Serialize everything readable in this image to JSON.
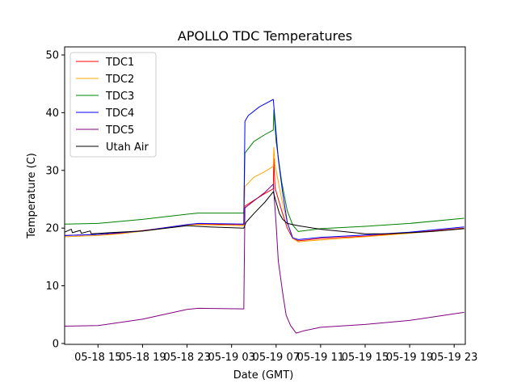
{
  "chart_data": {
    "type": "line",
    "title": "APOLLO TDC Temperatures",
    "xlabel": "Date (GMT)",
    "ylabel": "Temperature (C)",
    "x_units": "hours since 05-18 00:00",
    "xlim": [
      12,
      48
    ],
    "ylim": [
      -0.15,
      51.4
    ],
    "yticks": [
      0,
      10,
      20,
      30,
      40,
      50
    ],
    "xticks": [
      {
        "x": 15,
        "label": "05-18 15"
      },
      {
        "x": 19,
        "label": "05-18 19"
      },
      {
        "x": 23,
        "label": "05-18 23"
      },
      {
        "x": 27,
        "label": "05-19 03"
      },
      {
        "x": 31,
        "label": "05-19 07"
      },
      {
        "x": 35,
        "label": "05-19 11"
      },
      {
        "x": 39,
        "label": "05-19 15"
      },
      {
        "x": 43,
        "label": "05-19 19"
      },
      {
        "x": 47,
        "label": "05-19 23"
      }
    ],
    "grid": false,
    "legend_position": "top-left",
    "series": [
      {
        "name": "TDC1",
        "color": "#ff0000",
        "points": [
          [
            12,
            18.7
          ],
          [
            15,
            18.9
          ],
          [
            17,
            19.1
          ],
          [
            20,
            19.8
          ],
          [
            23,
            20.6
          ],
          [
            24,
            20.7
          ],
          [
            28.1,
            20.6
          ],
          [
            28.2,
            23.8
          ],
          [
            29,
            24.8
          ],
          [
            30,
            26
          ],
          [
            30.75,
            26.8
          ],
          [
            30.8,
            32
          ],
          [
            30.9,
            27
          ],
          [
            31.5,
            23
          ],
          [
            32,
            20
          ],
          [
            32.5,
            18.2
          ],
          [
            33,
            17.8
          ],
          [
            35,
            18.2
          ],
          [
            39,
            18.6
          ],
          [
            43,
            19.2
          ],
          [
            47.9,
            20
          ]
        ]
      },
      {
        "name": "TDC2",
        "color": "#ffa500",
        "points": [
          [
            12,
            18.5
          ],
          [
            15,
            18.7
          ],
          [
            17,
            19
          ],
          [
            20,
            19.7
          ],
          [
            23,
            20.5
          ],
          [
            24,
            20.6
          ],
          [
            28.1,
            20.4
          ],
          [
            28.2,
            27.2
          ],
          [
            29,
            28.8
          ],
          [
            30,
            29.8
          ],
          [
            30.75,
            30.7
          ],
          [
            30.8,
            34
          ],
          [
            30.9,
            31
          ],
          [
            31.5,
            25
          ],
          [
            32,
            21
          ],
          [
            32.5,
            18.2
          ],
          [
            33,
            17.6
          ],
          [
            34,
            17.8
          ],
          [
            39,
            18.5
          ],
          [
            43,
            19.1
          ],
          [
            47.9,
            19.9
          ]
        ]
      },
      {
        "name": "TDC3",
        "color": "#008000",
        "points": [
          [
            12,
            20.7
          ],
          [
            15,
            20.8
          ],
          [
            19,
            21.5
          ],
          [
            23,
            22.4
          ],
          [
            24,
            22.6
          ],
          [
            28.1,
            22.6
          ],
          [
            28.2,
            33
          ],
          [
            29,
            35
          ],
          [
            30,
            36.2
          ],
          [
            30.75,
            37
          ],
          [
            30.8,
            40.5
          ],
          [
            31,
            35
          ],
          [
            31.5,
            28
          ],
          [
            32,
            23
          ],
          [
            32.5,
            20.5
          ],
          [
            33,
            19.4
          ],
          [
            35,
            19.9
          ],
          [
            39,
            20.3
          ],
          [
            43,
            20.8
          ],
          [
            47.9,
            21.7
          ]
        ]
      },
      {
        "name": "TDC4",
        "color": "#0000ff",
        "points": [
          [
            12,
            18.7
          ],
          [
            15,
            18.9
          ],
          [
            19,
            19.5
          ],
          [
            23,
            20.6
          ],
          [
            24,
            20.8
          ],
          [
            28.1,
            20.7
          ],
          [
            28.2,
            38.5
          ],
          [
            28.5,
            39.5
          ],
          [
            29.5,
            41
          ],
          [
            30.75,
            42.3
          ],
          [
            30.85,
            40
          ],
          [
            31.2,
            32
          ],
          [
            31.6,
            26
          ],
          [
            32,
            21
          ],
          [
            32.5,
            18.3
          ],
          [
            33,
            18
          ],
          [
            35,
            18.4
          ],
          [
            39,
            18.8
          ],
          [
            43,
            19.3
          ],
          [
            47.9,
            20.2
          ]
        ]
      },
      {
        "name": "TDC5",
        "color": "#800080",
        "points": [
          [
            12,
            3
          ],
          [
            15,
            3.1
          ],
          [
            19,
            4.2
          ],
          [
            23,
            5.9
          ],
          [
            24,
            6.1
          ],
          [
            28.1,
            6
          ],
          [
            28.2,
            23.5
          ],
          [
            29,
            24.7
          ],
          [
            30,
            26.2
          ],
          [
            30.75,
            27.6
          ],
          [
            31,
            20.7
          ],
          [
            31.2,
            14.3
          ],
          [
            31.6,
            8.7
          ],
          [
            31.9,
            4.9
          ],
          [
            32.3,
            3.1
          ],
          [
            32.8,
            1.8
          ],
          [
            33.5,
            2.2
          ],
          [
            35,
            2.8
          ],
          [
            39,
            3.3
          ],
          [
            43,
            4
          ],
          [
            47.9,
            5.4
          ]
        ]
      },
      {
        "name": "Utah Air",
        "color": "#000000",
        "points": [
          [
            12,
            19.3
          ],
          [
            12.6,
            19.8
          ],
          [
            12.7,
            19.2
          ],
          [
            13.4,
            19.6
          ],
          [
            13.5,
            19.1
          ],
          [
            14.3,
            19.5
          ],
          [
            14.4,
            19.0
          ],
          [
            16,
            19.2
          ],
          [
            19,
            19.5
          ],
          [
            23,
            20.4
          ],
          [
            24,
            20.3
          ],
          [
            25,
            20.2
          ],
          [
            28.1,
            20.0
          ],
          [
            28.3,
            21
          ],
          [
            29,
            22.5
          ],
          [
            30,
            24.5
          ],
          [
            30.75,
            26.3
          ],
          [
            31,
            24.5
          ],
          [
            31.3,
            22.5
          ],
          [
            31.6,
            21.5
          ],
          [
            32,
            20.8
          ],
          [
            33,
            20.4
          ],
          [
            35,
            19.8
          ],
          [
            37,
            19.4
          ],
          [
            39,
            19
          ],
          [
            41,
            19
          ],
          [
            43,
            19.2
          ],
          [
            45,
            19.4
          ],
          [
            47.9,
            19.9
          ]
        ]
      }
    ]
  }
}
